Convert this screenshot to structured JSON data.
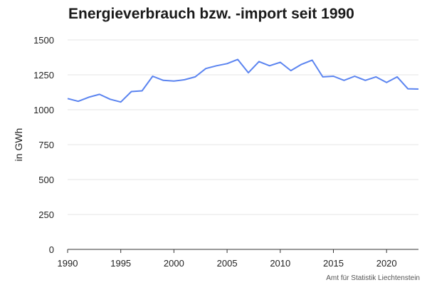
{
  "chart_data": {
    "type": "line",
    "title": "Energieverbrauch bzw. -import seit 1990",
    "ylabel": "in GWh",
    "xlabel": "",
    "xlim": [
      1990,
      2023
    ],
    "ylim": [
      0,
      1500
    ],
    "xticks": [
      1990,
      1995,
      2000,
      2005,
      2010,
      2015,
      2020
    ],
    "yticks": [
      0,
      250,
      500,
      750,
      1000,
      1250,
      1500
    ],
    "grid": true,
    "line_color": "#5b84f0",
    "x": [
      1990,
      1991,
      1992,
      1993,
      1994,
      1995,
      1996,
      1997,
      1998,
      1999,
      2000,
      2001,
      2002,
      2003,
      2004,
      2005,
      2006,
      2007,
      2008,
      2009,
      2010,
      2011,
      2012,
      2013,
      2014,
      2015,
      2016,
      2017,
      2018,
      2019,
      2020,
      2021,
      2022,
      2023
    ],
    "series": [
      {
        "values": [
          1080,
          1060,
          1090,
          1110,
          1075,
          1055,
          1130,
          1135,
          1240,
          1210,
          1205,
          1215,
          1235,
          1295,
          1315,
          1330,
          1360,
          1265,
          1345,
          1315,
          1340,
          1280,
          1325,
          1355,
          1235,
          1240,
          1210,
          1240,
          1210,
          1235,
          1195,
          1235,
          1150,
          1148
        ]
      }
    ]
  },
  "source": "Amt für Statistik Liechtenstein"
}
